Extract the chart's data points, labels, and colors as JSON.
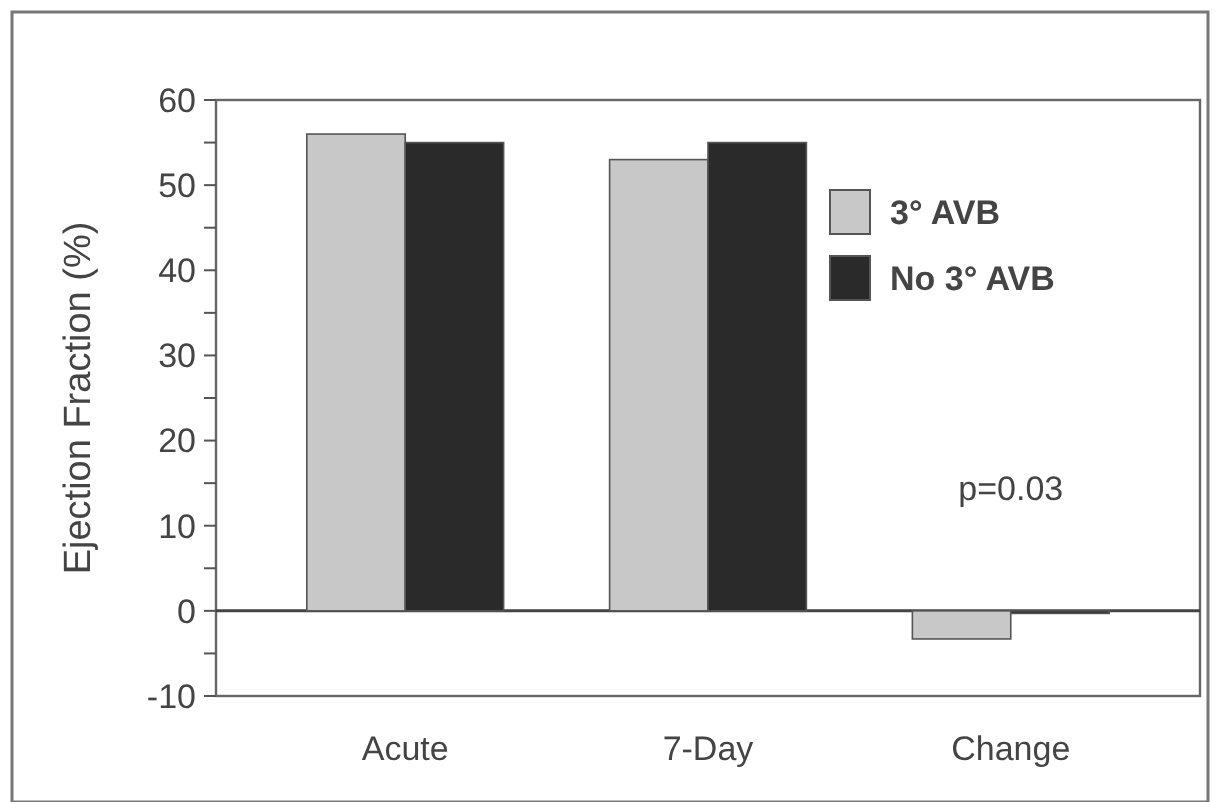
{
  "chart_data": {
    "type": "bar",
    "ylabel": "Ejection Fraction (%)",
    "categories": [
      "Acute",
      "7-Day",
      "Change"
    ],
    "series": [
      {
        "name": "3° AVB",
        "color": "#c8c8c8",
        "values": [
          56,
          53,
          -3.3
        ]
      },
      {
        "name": "No 3° AVB",
        "color": "#2a2a2a",
        "values": [
          55,
          55,
          -0.3
        ]
      }
    ],
    "ylim": [
      -10,
      60
    ],
    "yticks": [
      -10,
      {
        "value": -5,
        "label": null
      },
      0,
      {
        "value": 5,
        "label": null
      },
      10,
      {
        "value": 15,
        "label": null
      },
      20,
      {
        "value": 25,
        "label": null
      },
      30,
      {
        "value": 35,
        "label": null
      },
      40,
      {
        "value": 45,
        "label": null
      },
      50,
      {
        "value": 55,
        "label": null
      },
      60
    ],
    "annotations": [
      "p=0.03"
    ],
    "legend": "top right"
  }
}
